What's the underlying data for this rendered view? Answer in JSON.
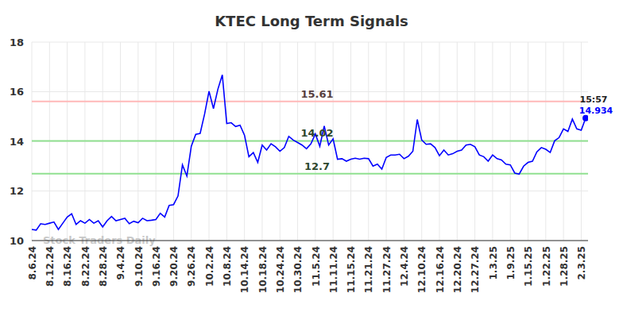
{
  "chart_data": {
    "type": "line",
    "title": "KTEC Long Term Signals",
    "watermark": "Stock Traders Daily",
    "color": "#0000ff",
    "grid": true,
    "marker": "last",
    "categories": [
      "8.6.24",
      null,
      null,
      null,
      "8.12.24",
      null,
      null,
      null,
      "8.16.24",
      null,
      null,
      null,
      "8.22.24",
      null,
      null,
      null,
      "8.28.24",
      null,
      null,
      null,
      "9.4.24",
      null,
      null,
      null,
      "9.10.24",
      null,
      null,
      null,
      "9.16.24",
      null,
      null,
      null,
      "9.20.24",
      null,
      null,
      null,
      "9.26.24",
      null,
      null,
      null,
      "10.2.24",
      null,
      null,
      null,
      "10.8.24",
      null,
      null,
      null,
      "10.14.24",
      null,
      null,
      null,
      "10.18.24",
      null,
      null,
      null,
      "10.24.24",
      null,
      null,
      null,
      "10.30.24",
      null,
      null,
      null,
      "11.5.24",
      null,
      null,
      null,
      "11.11.24",
      null,
      null,
      null,
      "11.15.24",
      null,
      null,
      null,
      "11.21.24",
      null,
      null,
      null,
      "11.27.24",
      null,
      null,
      null,
      "12.4.24",
      null,
      null,
      null,
      "12.10.24",
      null,
      null,
      null,
      "12.16.24",
      null,
      null,
      null,
      "12.20.24",
      null,
      null,
      null,
      "12.27.24",
      null,
      null,
      null,
      "1.3.25",
      null,
      null,
      null,
      "1.9.25",
      null,
      null,
      null,
      "1.15.25",
      null,
      null,
      null,
      "1.22.25",
      null,
      null,
      null,
      "1.28.25",
      null,
      null,
      null,
      "2.3.25",
      null
    ],
    "values": [
      10.45,
      10.42,
      10.68,
      10.65,
      10.7,
      10.75,
      10.45,
      10.7,
      10.95,
      11.08,
      10.65,
      10.8,
      10.7,
      10.85,
      10.7,
      10.8,
      10.55,
      10.8,
      10.97,
      10.8,
      10.85,
      10.9,
      10.68,
      10.78,
      10.72,
      10.9,
      10.8,
      10.82,
      10.85,
      11.1,
      10.95,
      11.42,
      11.45,
      11.8,
      13.05,
      12.6,
      13.8,
      14.28,
      14.32,
      15.1,
      16.02,
      15.32,
      16.1,
      16.68,
      14.72,
      14.75,
      14.6,
      14.65,
      14.25,
      13.38,
      13.55,
      13.15,
      13.85,
      13.65,
      13.9,
      13.78,
      13.6,
      13.75,
      14.2,
      14.05,
      13.95,
      13.85,
      13.7,
      13.9,
      14.3,
      13.8,
      14.62,
      13.85,
      14.1,
      13.28,
      13.3,
      13.2,
      13.28,
      13.32,
      13.28,
      13.32,
      13.3,
      13.0,
      13.08,
      12.88,
      13.35,
      13.45,
      13.45,
      13.48,
      13.3,
      13.4,
      13.6,
      14.88,
      14.05,
      13.88,
      13.9,
      13.75,
      13.42,
      13.65,
      13.45,
      13.5,
      13.6,
      13.65,
      13.85,
      13.88,
      13.78,
      13.45,
      13.38,
      13.2,
      13.45,
      13.3,
      13.25,
      13.08,
      13.05,
      12.72,
      12.68,
      13.0,
      13.15,
      13.2,
      13.58,
      13.75,
      13.68,
      13.55,
      14.02,
      14.15,
      14.5,
      14.4,
      14.9,
      14.5,
      14.45,
      14.934
    ],
    "ylim": [
      10,
      18
    ],
    "yticks": [
      10,
      12,
      14,
      16,
      18
    ],
    "hlines": [
      {
        "value": 15.61,
        "label": "15.61",
        "color": "#ffb8b8"
      },
      {
        "value": 14.02,
        "label": "14.02",
        "color": "#90e090"
      },
      {
        "value": 12.7,
        "label": "12.7",
        "color": "#90e090"
      }
    ],
    "annotations": [
      "15:57",
      "14.934"
    ]
  }
}
